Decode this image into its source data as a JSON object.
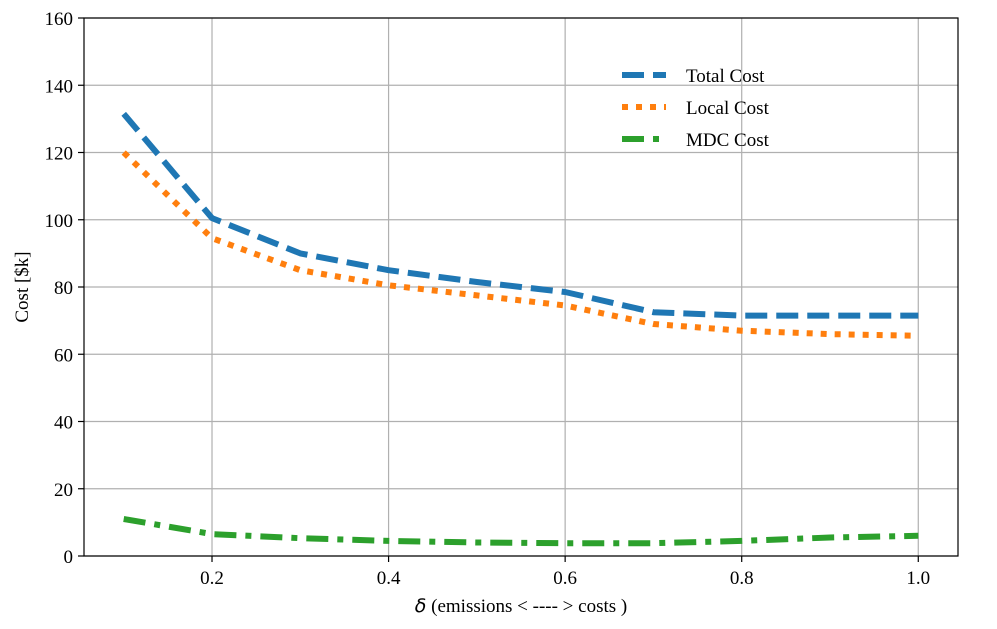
{
  "chart_data": {
    "type": "line",
    "title": "",
    "xlabel_symbol": "δ",
    "xlabel": " (emissions < ---- > costs )",
    "ylabel": "Cost [$k]",
    "xlim": [
      0.055,
      1.045
    ],
    "ylim": [
      0,
      160
    ],
    "xticks": [
      0.2,
      0.4,
      0.6,
      0.8,
      1.0
    ],
    "xtick_labels": [
      "0.2",
      "0.4",
      "0.6",
      "0.8",
      "1.0"
    ],
    "yticks": [
      0,
      20,
      40,
      60,
      80,
      100,
      120,
      140,
      160
    ],
    "ytick_labels": [
      "0",
      "20",
      "40",
      "60",
      "80",
      "100",
      "120",
      "140",
      "160"
    ],
    "grid": true,
    "legend_position": "upper-right",
    "x": [
      0.1,
      0.2,
      0.3,
      0.4,
      0.5,
      0.6,
      0.7,
      0.8,
      0.9,
      1.0
    ],
    "series": [
      {
        "name": "Total Cost",
        "color": "#1f77b4",
        "style": "dashed",
        "values": [
          131.5,
          100.5,
          90.0,
          85.0,
          81.5,
          78.5,
          72.5,
          71.5,
          71.5,
          71.5
        ]
      },
      {
        "name": "Local Cost",
        "color": "#ff7f0e",
        "style": "dotted",
        "values": [
          120.0,
          94.5,
          85.0,
          80.5,
          77.5,
          74.5,
          69.0,
          67.0,
          66.0,
          65.5
        ]
      },
      {
        "name": "MDC Cost",
        "color": "#2ca02c",
        "style": "dashdot",
        "values": [
          11.0,
          6.5,
          5.3,
          4.5,
          4.0,
          3.8,
          3.8,
          4.5,
          5.5,
          6.0
        ]
      }
    ]
  }
}
